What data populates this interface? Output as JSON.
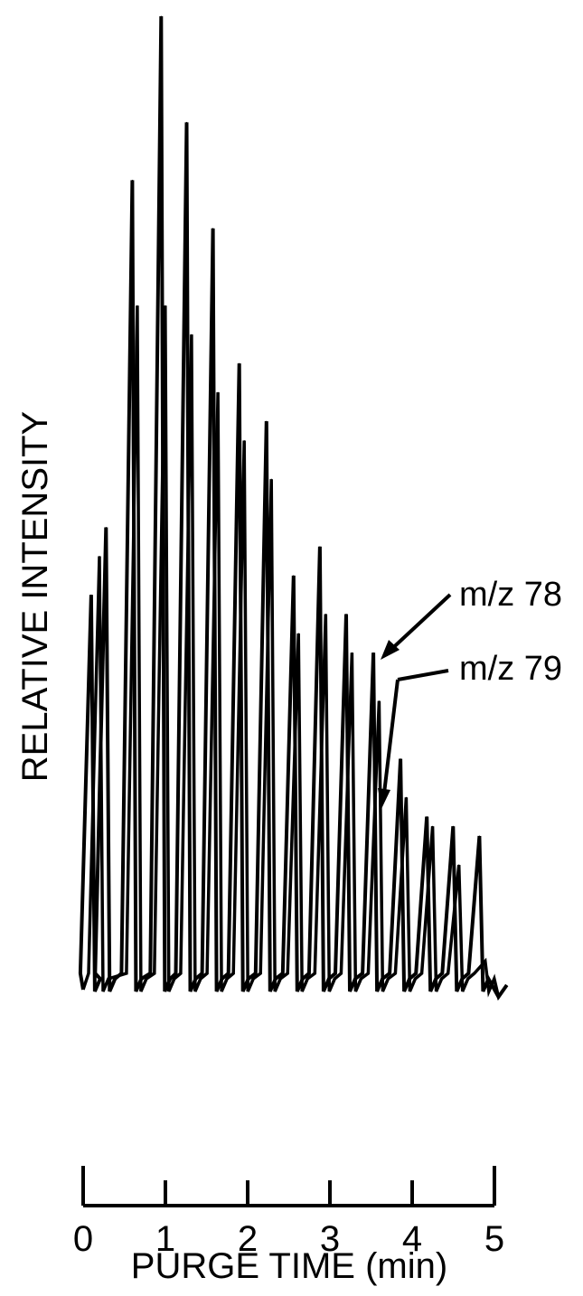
{
  "chart_data": {
    "type": "line",
    "title": "",
    "xlabel": "PURGE TIME (min)",
    "ylabel": "RELATIVE INTENSITY",
    "xlim": [
      0,
      5
    ],
    "ylim": [
      0,
      100
    ],
    "x_ticks": [
      "0",
      "1",
      "2",
      "3",
      "4",
      "5"
    ],
    "grid": false,
    "series": [
      {
        "name": "m/z 78",
        "peaks": [
          {
            "x": 0.12,
            "y": 40
          },
          {
            "x": 0.3,
            "y": 47
          },
          {
            "x": 0.62,
            "y": 83
          },
          {
            "x": 0.97,
            "y": 100
          },
          {
            "x": 1.28,
            "y": 89
          },
          {
            "x": 1.6,
            "y": 78
          },
          {
            "x": 1.92,
            "y": 64
          },
          {
            "x": 2.25,
            "y": 58
          },
          {
            "x": 2.58,
            "y": 42
          },
          {
            "x": 2.9,
            "y": 45
          },
          {
            "x": 3.22,
            "y": 38
          },
          {
            "x": 3.55,
            "y": 34
          },
          {
            "x": 3.88,
            "y": 23
          },
          {
            "x": 4.2,
            "y": 17
          },
          {
            "x": 4.52,
            "y": 16
          },
          {
            "x": 4.84,
            "y": 15
          }
        ]
      },
      {
        "name": "m/z 79",
        "peaks": [
          {
            "x": 0.22,
            "y": 44
          },
          {
            "x": 0.68,
            "y": 70
          },
          {
            "x": 1.02,
            "y": 70
          },
          {
            "x": 1.34,
            "y": 67
          },
          {
            "x": 1.66,
            "y": 61
          },
          {
            "x": 1.98,
            "y": 56
          },
          {
            "x": 2.31,
            "y": 52
          },
          {
            "x": 2.64,
            "y": 36
          },
          {
            "x": 2.97,
            "y": 38
          },
          {
            "x": 3.29,
            "y": 34
          },
          {
            "x": 3.62,
            "y": 29
          },
          {
            "x": 3.95,
            "y": 19
          },
          {
            "x": 4.27,
            "y": 16
          },
          {
            "x": 4.59,
            "y": 12
          },
          {
            "x": 4.91,
            "y": 2
          }
        ]
      }
    ],
    "annotations": [
      "m/z 78",
      "m/z 79"
    ]
  }
}
